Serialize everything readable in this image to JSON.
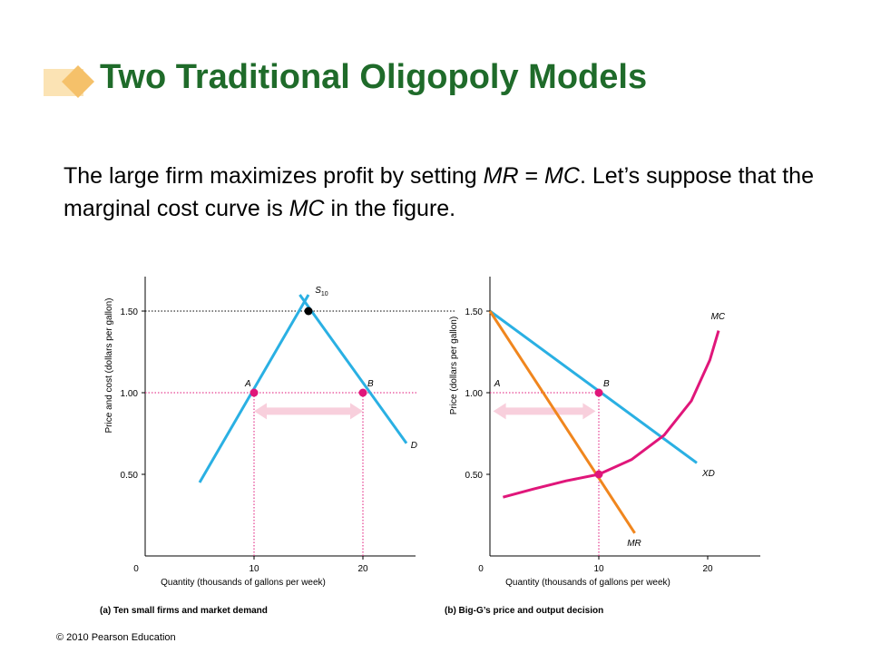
{
  "slide": {
    "title": "Two Traditional Oligopoly Models",
    "body": {
      "t1": "The large firm maximizes profit by setting ",
      "i1": "MR",
      "t2": " = ",
      "i2": "MC",
      "t3": ". Let’s suppose that the marginal cost curve is ",
      "i3": "MC",
      "t4": " in the figure."
    },
    "copyright": "© 2010 Pearson Education"
  },
  "colors": {
    "title": "#1f6b2a",
    "curve_blue": "#2ab0e3",
    "curve_orange": "#f0861e",
    "curve_magenta": "#e0167a",
    "point_magenta": "#e0167a",
    "arrow_pink": "#f8cfdc",
    "deco_orange": "#f5c16a"
  },
  "chart_data": [
    {
      "type": "line",
      "caption": "(a) Ten small firms and market demand",
      "xlabel": "Quantity (thousands of gallons per week)",
      "ylabel": "Price and cost (dollars per gallon)",
      "xlim": [
        0,
        25
      ],
      "ylim": [
        0,
        1.85
      ],
      "xticks": [
        {
          "v": 0,
          "label": "0"
        },
        {
          "v": 10,
          "label": "10"
        },
        {
          "v": 20,
          "label": "20"
        }
      ],
      "yticks": [
        {
          "v": 0.5,
          "label": "0.50"
        },
        {
          "v": 1.0,
          "label": "1.00"
        },
        {
          "v": 1.5,
          "label": "1.50"
        }
      ],
      "series": [
        {
          "name": "S10",
          "color": "#2ab0e3",
          "points": [
            [
              5,
              0.45
            ],
            [
              15,
              1.6
            ]
          ]
        },
        {
          "name": "D",
          "color": "#2ab0e3",
          "points": [
            [
              14.2,
              1.6
            ],
            [
              24,
              0.69
            ]
          ]
        }
      ],
      "markers": [
        {
          "label": "A",
          "x": 10,
          "y": 1.0,
          "color": "#e0167a"
        },
        {
          "label": "B",
          "x": 20,
          "y": 1.0,
          "color": "#e0167a"
        },
        {
          "label": "",
          "x": 15,
          "y": 1.5,
          "color": "#000000"
        }
      ],
      "curve_labels": [
        {
          "text": "S",
          "sub": "10",
          "x": 15.6,
          "y": 1.61
        },
        {
          "text": "D",
          "x": 24.4,
          "y": 0.66
        }
      ],
      "ref_lines": [
        {
          "y": 1.5,
          "x0": 0,
          "x1": 15,
          "extend_right": true,
          "color": "#000000"
        },
        {
          "y": 1.0,
          "x0": 0,
          "x1": 25,
          "color": "#e0167a"
        },
        {
          "x": 10,
          "y0": 0,
          "y1": 1.0,
          "color": "#e0167a"
        },
        {
          "x": 20,
          "y0": 0,
          "y1": 1.0,
          "color": "#e0167a"
        }
      ],
      "arrow": {
        "x0": 10,
        "x1": 20,
        "y": 0.92
      }
    },
    {
      "type": "line",
      "caption": "(b) Big-G’s price and output decision",
      "xlabel": "Quantity (thousands of gallons per week)",
      "ylabel": "Price (dollars per gallon)",
      "xlim": [
        0,
        25
      ],
      "ylim": [
        0,
        1.85
      ],
      "xticks": [
        {
          "v": 0,
          "label": "0"
        },
        {
          "v": 10,
          "label": "10"
        },
        {
          "v": 20,
          "label": "20"
        }
      ],
      "yticks": [
        {
          "v": 0.5,
          "label": "0.50"
        },
        {
          "v": 1.0,
          "label": "1.00"
        },
        {
          "v": 1.5,
          "label": "1.50"
        }
      ],
      "series": [
        {
          "name": "XD",
          "color": "#2ab0e3",
          "points": [
            [
              0,
              1.5
            ],
            [
              19,
              0.57
            ]
          ]
        },
        {
          "name": "MR",
          "color": "#f0861e",
          "points": [
            [
              0,
              1.5
            ],
            [
              13.3,
              0.14
            ]
          ]
        },
        {
          "name": "MC",
          "color": "#e0167a",
          "points": [
            [
              1.2,
              0.36
            ],
            [
              4,
              0.41
            ],
            [
              7,
              0.46
            ],
            [
              10,
              0.5
            ],
            [
              13,
              0.59
            ],
            [
              16,
              0.74
            ],
            [
              18.5,
              0.95
            ],
            [
              20.2,
              1.2
            ],
            [
              21,
              1.38
            ]
          ]
        }
      ],
      "markers": [
        {
          "label": "B",
          "x": 10,
          "y": 1.0,
          "color": "#e0167a"
        },
        {
          "label": "",
          "x": 10,
          "y": 0.5,
          "color": "#e0167a"
        }
      ],
      "curve_labels": [
        {
          "text": "MC",
          "x": 20.3,
          "y": 1.45
        },
        {
          "text": "XD",
          "x": 19.5,
          "y": 0.49
        },
        {
          "text": "MR",
          "x": 12.6,
          "y": 0.06
        },
        {
          "text": "A",
          "x": 0.4,
          "y": 1.04
        }
      ],
      "ref_lines": [
        {
          "y": 1.0,
          "x0": 0,
          "x1": 10,
          "color": "#e0167a"
        },
        {
          "x": 10,
          "y0": 0,
          "y1": 1.0,
          "color": "#e0167a"
        }
      ],
      "arrow": {
        "x0": 0.3,
        "x1": 9.7,
        "y": 0.92
      }
    }
  ]
}
